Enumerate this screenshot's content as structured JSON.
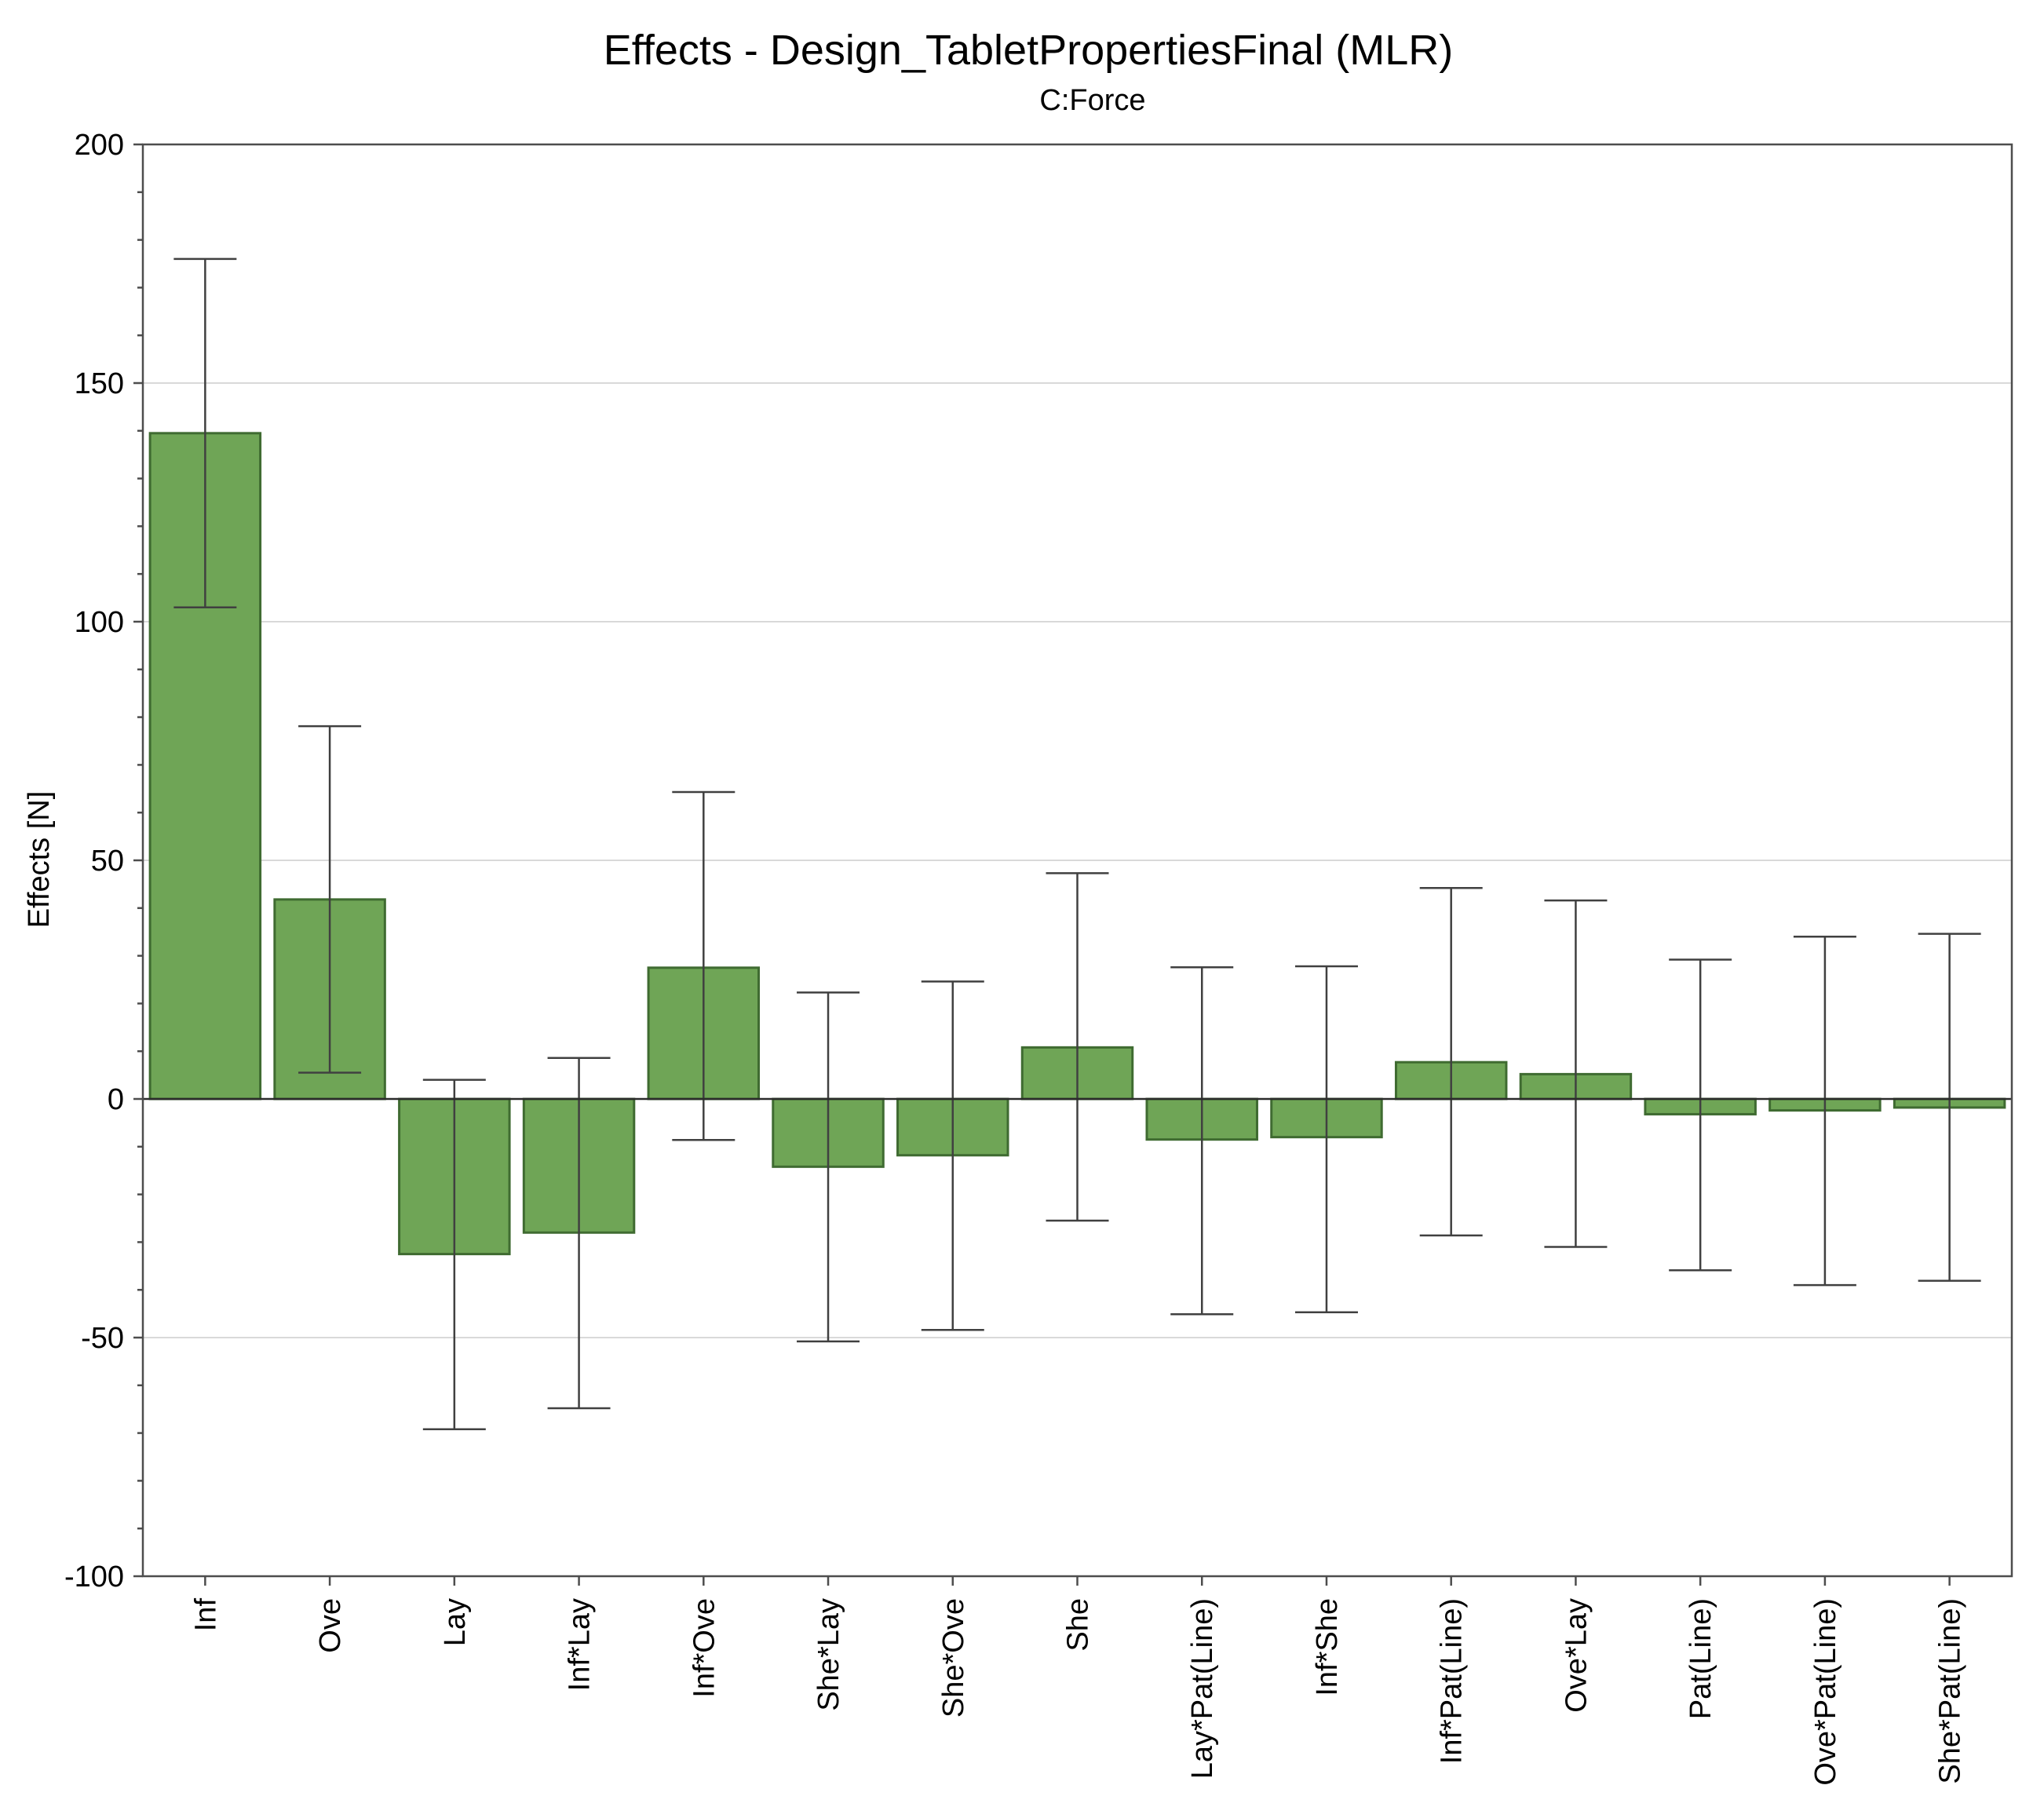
{
  "title": "Effects - Design_TabletPropertiesFinal (MLR)",
  "subtitle": "C:Force",
  "colors": {
    "bar_fill": "#6fa556",
    "bar_stroke": "#3f6b31",
    "error_bar": "#404040",
    "grid": "#d9d9d9"
  },
  "chart_data": {
    "type": "bar",
    "title": "Effects - Design_TabletPropertiesFinal (MLR)",
    "subtitle": "C:Force",
    "xlabel": "",
    "ylabel": "Effects [N]",
    "ylim": [
      -100,
      200
    ],
    "yticks": [
      -100,
      -50,
      0,
      50,
      100,
      150,
      200
    ],
    "grid": true,
    "categories": [
      "Inf",
      "Ove",
      "Lay",
      "Inf*Lay",
      "Inf*Ove",
      "She*Lay",
      "She*Ove",
      "She",
      "Lay*Pat(Line)",
      "Inf*She",
      "Inf*Pat(Line)",
      "Ove*Lay",
      "Pat(Line)",
      "Ove*Pat(Line)",
      "She*Pat(Line)"
    ],
    "values": [
      139.5,
      41.8,
      -32.5,
      -28.0,
      27.5,
      -14.2,
      -11.8,
      10.8,
      -8.5,
      -8.0,
      7.7,
      5.2,
      -3.2,
      -2.4,
      -1.8
    ],
    "error_low": [
      103.0,
      5.5,
      -69.2,
      -64.8,
      -8.6,
      -50.8,
      -48.4,
      -25.5,
      -45.1,
      -44.7,
      -28.6,
      -31.0,
      -35.9,
      -39.0,
      -38.1
    ],
    "error_high": [
      176.0,
      78.1,
      4.0,
      8.6,
      64.3,
      22.3,
      24.6,
      47.3,
      27.6,
      27.8,
      44.2,
      41.6,
      29.2,
      34.0,
      34.6
    ]
  }
}
